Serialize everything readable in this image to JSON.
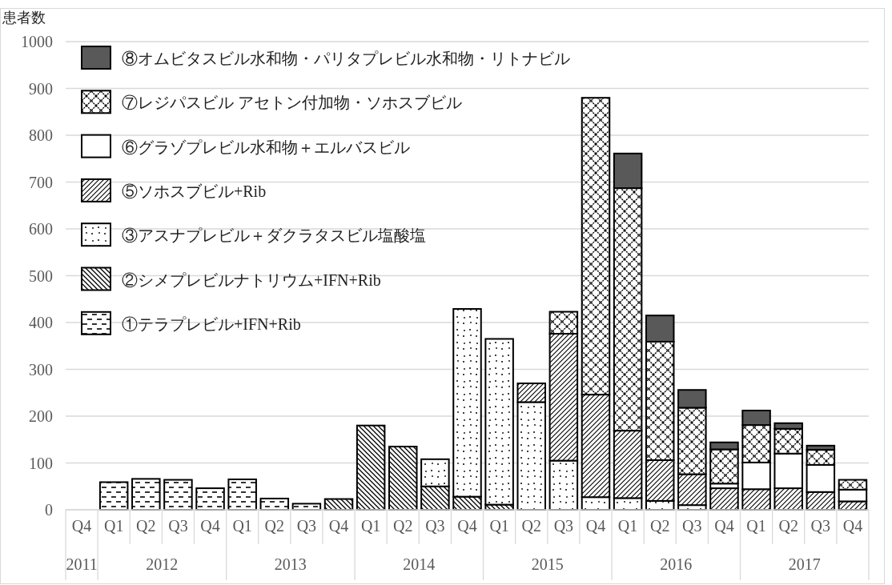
{
  "chart_data": {
    "type": "bar",
    "stacked": true,
    "ylabel": "患者数",
    "categories": [
      "Q4",
      "Q1",
      "Q2",
      "Q3",
      "Q4",
      "Q1",
      "Q2",
      "Q3",
      "Q4",
      "Q1",
      "Q2",
      "Q3",
      "Q4",
      "Q1",
      "Q2",
      "Q3",
      "Q4",
      "Q1",
      "Q2",
      "Q3",
      "Q4",
      "Q1",
      "Q2",
      "Q3",
      "Q4"
    ],
    "annotations": [
      "2011",
      "2012",
      "2013",
      "2014",
      "2015",
      "2016",
      "2017"
    ],
    "ylim": [
      0,
      1000
    ],
    "yticks": [
      0,
      100,
      200,
      300,
      400,
      500,
      600,
      700,
      800,
      900,
      1000
    ],
    "grid": "y",
    "legend": "top left",
    "series": [
      {
        "name": "①テラプレビル+IFN+Rib",
        "color": "#000000",
        "values": [
          null,
          59,
          66,
          64,
          46,
          65,
          24,
          13,
          null,
          null,
          null,
          null,
          null,
          null,
          null,
          null,
          null,
          null,
          null,
          null,
          null,
          null,
          null,
          null,
          null
        ]
      },
      {
        "name": "②シメプレビルナトリウム+IFN+Rib",
        "color": "#000000",
        "values": [
          null,
          null,
          null,
          null,
          null,
          null,
          null,
          null,
          23,
          180,
          135,
          50,
          28,
          11,
          null,
          null,
          null,
          null,
          null,
          null,
          null,
          null,
          null,
          null,
          null
        ]
      },
      {
        "name": "③アスナプレビル＋ダクラタスビル塩酸塩",
        "color": "#000000",
        "values": [
          null,
          null,
          null,
          null,
          null,
          null,
          null,
          null,
          null,
          null,
          null,
          58,
          401,
          354,
          230,
          105,
          27,
          25,
          19,
          10,
          null,
          null,
          null,
          null,
          null
        ]
      },
      {
        "name": "⑤ソホスブビル+Rib",
        "color": "#000000",
        "values": [
          null,
          null,
          null,
          null,
          null,
          null,
          null,
          null,
          null,
          null,
          null,
          null,
          null,
          null,
          40,
          271,
          219,
          144,
          87,
          66,
          46,
          44,
          46,
          38,
          18
        ]
      },
      {
        "name": "⑥グラゾプレビル水和物＋エルバスビル",
        "color": "#ffffff",
        "values": [
          null,
          null,
          null,
          null,
          null,
          null,
          null,
          null,
          null,
          null,
          null,
          null,
          null,
          null,
          null,
          null,
          null,
          null,
          null,
          null,
          10,
          57,
          74,
          58,
          25
        ]
      },
      {
        "name": "⑦レジパスビル アセトン付加物・ソホスブビル",
        "color": "#000000",
        "values": [
          null,
          null,
          null,
          null,
          null,
          null,
          null,
          null,
          null,
          null,
          null,
          null,
          null,
          null,
          null,
          47,
          634,
          518,
          253,
          142,
          73,
          80,
          53,
          32,
          21
        ]
      },
      {
        "name": "⑧オムビタスビル水和物・パリタプレビル水和物・リトナビル",
        "color": "#595959",
        "values": [
          null,
          null,
          null,
          null,
          null,
          null,
          null,
          null,
          null,
          null,
          null,
          null,
          null,
          null,
          null,
          null,
          null,
          74,
          56,
          38,
          15,
          31,
          12,
          9,
          null
        ]
      }
    ]
  }
}
